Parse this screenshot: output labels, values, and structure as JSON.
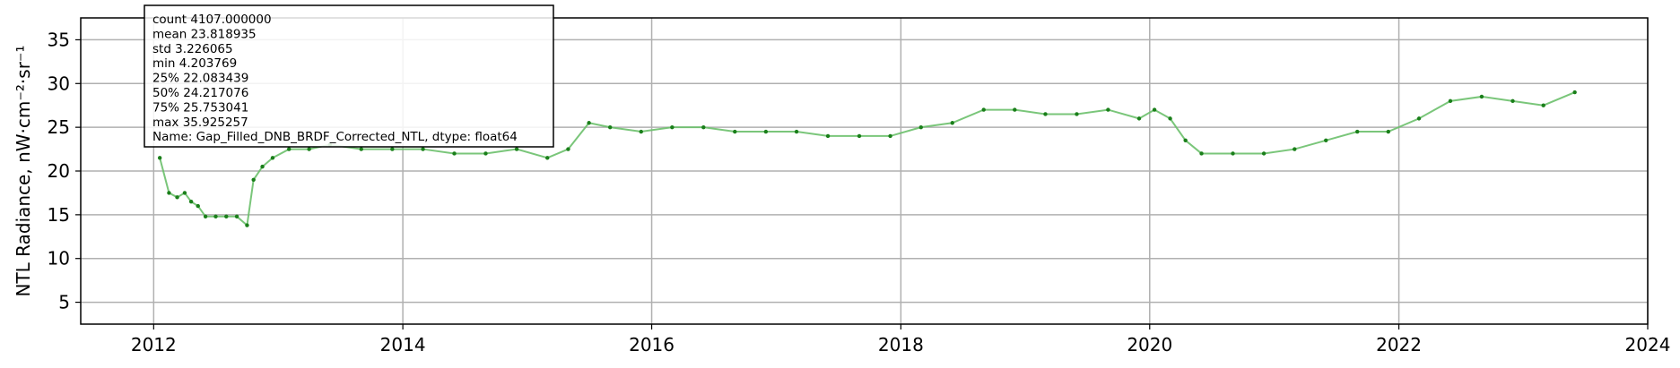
{
  "chart_data": {
    "type": "line",
    "ylabel": "NTL Radiance, nW·cm⁻²·sr⁻¹",
    "xlabel": "",
    "title": "",
    "xlim": [
      "2011-06-01",
      "2024-01-01"
    ],
    "ylim": [
      2.5,
      37.5
    ],
    "xticks": [
      "2012",
      "2014",
      "2016",
      "2018",
      "2020",
      "2022",
      "2024"
    ],
    "yticks": [
      5,
      10,
      15,
      20,
      25,
      30,
      35
    ],
    "grid": true,
    "series": [
      {
        "color": "#2e9c2e",
        "line_color": "#6cc06c",
        "marker_color": "#1a7f1a",
        "x": [
          "2012-01-19",
          "2012-02-15",
          "2012-03-10",
          "2012-04-01",
          "2012-04-20",
          "2012-05-10",
          "2012-06-01",
          "2012-07-01",
          "2012-08-01",
          "2012-09-01",
          "2012-10-01",
          "2012-10-20",
          "2012-11-15",
          "2012-12-15",
          "2013-02-01",
          "2013-04-01",
          "2013-06-01",
          "2013-09-01",
          "2013-12-01",
          "2014-03-01",
          "2014-06-01",
          "2014-09-01",
          "2014-12-01",
          "2015-03-01",
          "2015-05-01",
          "2015-07-01",
          "2015-09-01",
          "2015-12-01",
          "2016-03-01",
          "2016-06-01",
          "2016-09-01",
          "2016-12-01",
          "2017-03-01",
          "2017-06-01",
          "2017-09-01",
          "2017-12-01",
          "2018-03-01",
          "2018-06-01",
          "2018-09-01",
          "2018-12-01",
          "2019-03-01",
          "2019-06-01",
          "2019-09-01",
          "2019-12-01",
          "2020-01-15",
          "2020-03-01",
          "2020-04-15",
          "2020-06-01",
          "2020-09-01",
          "2020-12-01",
          "2021-03-01",
          "2021-06-01",
          "2021-09-01",
          "2021-12-01",
          "2022-03-01",
          "2022-06-01",
          "2022-09-01",
          "2022-12-01",
          "2023-03-01",
          "2023-06-01"
        ],
        "values": [
          21.5,
          17.5,
          17.0,
          17.5,
          16.5,
          16.0,
          14.8,
          14.8,
          14.8,
          14.8,
          13.8,
          19.0,
          20.5,
          21.5,
          22.5,
          22.5,
          23.0,
          22.5,
          22.5,
          22.5,
          22.0,
          22.0,
          22.5,
          21.5,
          22.5,
          25.5,
          25.0,
          24.5,
          25.0,
          25.0,
          24.5,
          24.5,
          24.5,
          24.0,
          24.0,
          24.0,
          25.0,
          25.5,
          27.0,
          27.0,
          26.5,
          26.5,
          27.0,
          26.0,
          27.0,
          26.0,
          23.5,
          22.0,
          22.0,
          22.0,
          22.5,
          23.5,
          24.5,
          24.5,
          26.0,
          28.0,
          28.5,
          28.0,
          27.5,
          29.0
        ]
      }
    ],
    "stats_box": {
      "lines": [
        "count    4107.000000",
        "mean       23.818935",
        "std         3.226065",
        "min         4.203769",
        "25%        22.083439",
        "50%        24.217076",
        "75%        25.753041",
        "max        35.925257",
        "Name: Gap_Filled_DNB_BRDF_Corrected_NTL, dtype: float64"
      ]
    }
  }
}
